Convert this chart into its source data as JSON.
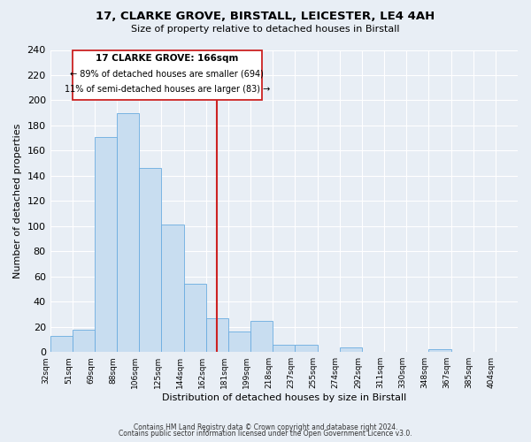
{
  "title": "17, CLARKE GROVE, BIRSTALL, LEICESTER, LE4 4AH",
  "subtitle": "Size of property relative to detached houses in Birstall",
  "xlabel": "Distribution of detached houses by size in Birstall",
  "ylabel": "Number of detached properties",
  "bar_color": "#c8ddf0",
  "bar_edge_color": "#6aace0",
  "categories": [
    "32sqm",
    "51sqm",
    "69sqm",
    "88sqm",
    "106sqm",
    "125sqm",
    "144sqm",
    "162sqm",
    "181sqm",
    "199sqm",
    "218sqm",
    "237sqm",
    "255sqm",
    "274sqm",
    "292sqm",
    "311sqm",
    "330sqm",
    "348sqm",
    "367sqm",
    "385sqm",
    "404sqm"
  ],
  "values": [
    13,
    18,
    171,
    190,
    146,
    101,
    54,
    27,
    16,
    25,
    6,
    6,
    0,
    4,
    0,
    0,
    0,
    2,
    0,
    0,
    0
  ],
  "vline_index": 7,
  "marker_label": "17 CLARKE GROVE: 166sqm",
  "arrow_left_text": "← 89% of detached houses are smaller (694)",
  "arrow_right_text": "11% of semi-detached houses are larger (83) →",
  "vline_color": "#cc2222",
  "box_edge_color": "#cc2222",
  "ylim": [
    0,
    240
  ],
  "yticks": [
    0,
    20,
    40,
    60,
    80,
    100,
    120,
    140,
    160,
    180,
    200,
    220,
    240
  ],
  "footer1": "Contains HM Land Registry data © Crown copyright and database right 2024.",
  "footer2": "Contains public sector information licensed under the Open Government Licence v3.0.",
  "background_color": "#e8eef5"
}
